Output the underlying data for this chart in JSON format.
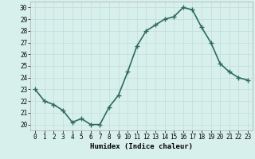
{
  "x": [
    0,
    1,
    2,
    3,
    4,
    5,
    6,
    7,
    8,
    9,
    10,
    11,
    12,
    13,
    14,
    15,
    16,
    17,
    18,
    19,
    20,
    21,
    22,
    23
  ],
  "y": [
    23.0,
    22.0,
    21.7,
    21.2,
    20.2,
    20.5,
    20.0,
    20.0,
    21.5,
    22.5,
    24.5,
    26.7,
    28.0,
    28.5,
    29.0,
    29.2,
    30.0,
    29.8,
    28.3,
    27.0,
    25.2,
    24.5,
    24.0,
    23.8
  ],
  "line_color": "#2e6b5e",
  "marker": "+",
  "markersize": 4,
  "linewidth": 1.2,
  "xlabel": "Humidex (Indice chaleur)",
  "xlim": [
    -0.5,
    23.5
  ],
  "ylim": [
    19.5,
    30.5
  ],
  "yticks": [
    20,
    21,
    22,
    23,
    24,
    25,
    26,
    27,
    28,
    29,
    30
  ],
  "xticks": [
    0,
    1,
    2,
    3,
    4,
    5,
    6,
    7,
    8,
    9,
    10,
    11,
    12,
    13,
    14,
    15,
    16,
    17,
    18,
    19,
    20,
    21,
    22,
    23
  ],
  "bg_color": "#d8f0ec",
  "grid_color": "#c0ddd8",
  "tick_label_fontsize": 5.5,
  "xlabel_fontsize": 6.5
}
